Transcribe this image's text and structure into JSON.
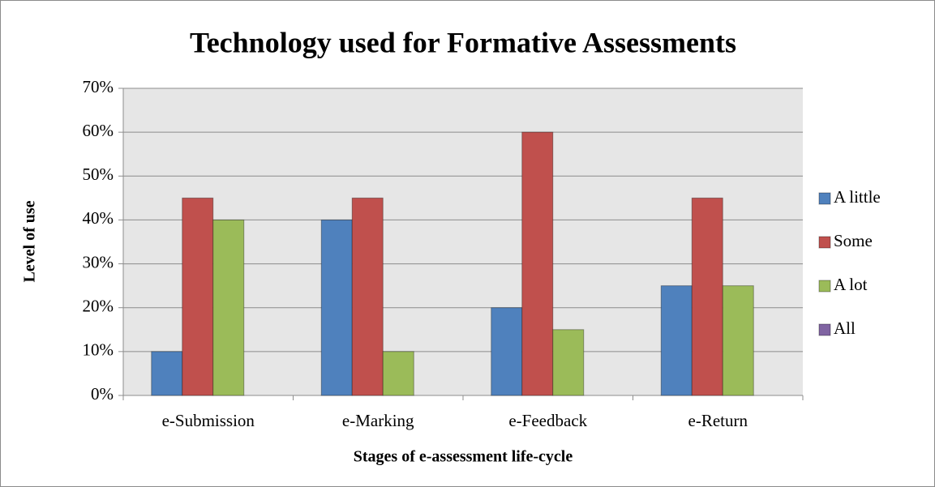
{
  "chart_data": {
    "type": "bar",
    "title": "Technology used for Formative Assessments",
    "x_label": "Stages of e-assessment life-cycle",
    "y_label": "Level of use",
    "categories": [
      "e-Submission",
      "e-Marking",
      "e-Feedback",
      "e-Return"
    ],
    "series": [
      {
        "name": "A little",
        "color": "#4f81bd",
        "values": [
          10,
          40,
          20,
          25
        ]
      },
      {
        "name": "Some",
        "color": "#c0504d",
        "values": [
          45,
          45,
          60,
          45
        ]
      },
      {
        "name": "A lot",
        "color": "#9bbb59",
        "values": [
          40,
          10,
          15,
          25
        ]
      },
      {
        "name": "All",
        "color": "#8064a2",
        "values": [
          0,
          0,
          0,
          0
        ]
      }
    ],
    "ylim": [
      0,
      70
    ],
    "yticks": [
      {
        "value": 0,
        "label": "0%"
      },
      {
        "value": 10,
        "label": "10%"
      },
      {
        "value": 20,
        "label": "20%"
      },
      {
        "value": 30,
        "label": "30%"
      },
      {
        "value": 40,
        "label": "40%"
      },
      {
        "value": 50,
        "label": "50%"
      },
      {
        "value": 60,
        "label": "60%"
      },
      {
        "value": 70,
        "label": "70%"
      }
    ],
    "grid": true,
    "legend": "right"
  }
}
